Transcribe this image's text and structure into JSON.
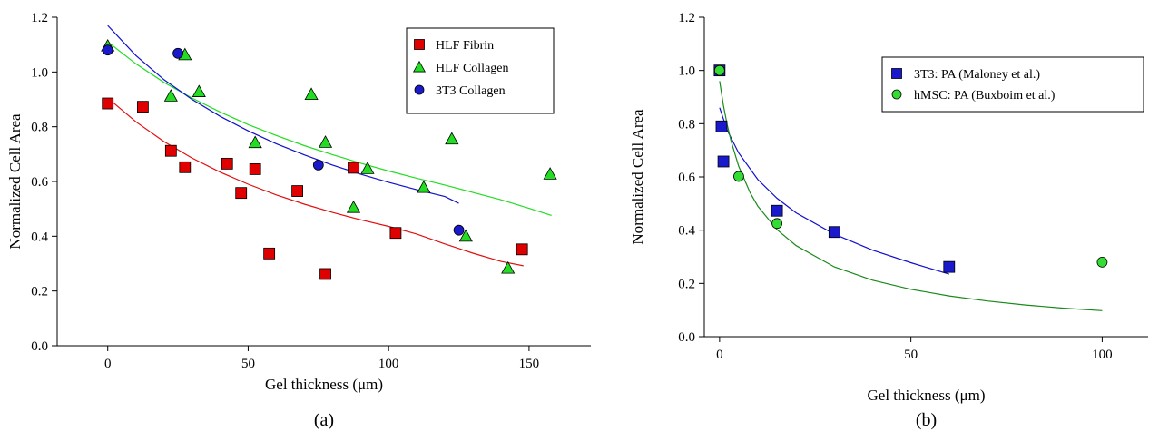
{
  "chart_data": [
    {
      "type": "scatter",
      "panel_label": "(a)",
      "xlabel": "Gel thickness (μm)",
      "ylabel": "Normalized Cell Area",
      "xlim": [
        -18,
        172
      ],
      "ylim": [
        0,
        1.2
      ],
      "xticks": [
        0,
        50,
        100,
        150
      ],
      "yticks": [
        0.0,
        0.2,
        0.4,
        0.6,
        0.8,
        1.0,
        1.2
      ],
      "grid": false,
      "legend_position": "top-right",
      "series": [
        {
          "name": "HLF Fibrin",
          "marker": "square",
          "color": "#e00000",
          "x": [
            0,
            12.5,
            22.5,
            27.5,
            42.5,
            47.5,
            52.5,
            57.5,
            67.5,
            77.5,
            87.5,
            102.5,
            147.5
          ],
          "y": [
            0.885,
            0.873,
            0.712,
            0.652,
            0.665,
            0.558,
            0.645,
            0.337,
            0.565,
            0.262,
            0.65,
            0.412,
            0.352
          ],
          "fit": {
            "x": [
              0,
              10,
              20,
              30,
              40,
              50,
              60,
              70,
              80,
              90,
              100,
              110,
              120,
              130,
              140,
              148
            ],
            "y": [
              0.905,
              0.818,
              0.746,
              0.686,
              0.634,
              0.59,
              0.551,
              0.517,
              0.487,
              0.46,
              0.436,
              0.408,
              0.372,
              0.338,
              0.308,
              0.292
            ]
          }
        },
        {
          "name": "HLF Collagen",
          "marker": "triangle",
          "color": "#22dd22",
          "x": [
            0,
            22.5,
            27.5,
            32.5,
            52.5,
            72.5,
            77.5,
            87.5,
            92.5,
            112.5,
            122.5,
            127.5,
            142.5,
            157.5
          ],
          "y": [
            1.095,
            0.912,
            1.063,
            0.928,
            0.742,
            0.918,
            0.743,
            0.505,
            0.647,
            0.578,
            0.755,
            0.4,
            0.283,
            0.627
          ],
          "fit": {
            "x": [
              0,
              10,
              20,
              30,
              40,
              50,
              60,
              70,
              80,
              90,
              100,
              110,
              120,
              130,
              140,
              150,
              158
            ],
            "y": [
              1.11,
              1.03,
              0.962,
              0.905,
              0.854,
              0.808,
              0.768,
              0.731,
              0.698,
              0.667,
              0.638,
              0.612,
              0.587,
              0.56,
              0.533,
              0.502,
              0.476
            ]
          }
        },
        {
          "name": "3T3 Collagen",
          "marker": "circle",
          "color": "#1a1acc",
          "x": [
            0,
            25,
            75,
            125
          ],
          "y": [
            1.08,
            1.068,
            0.66,
            0.422
          ],
          "fit": {
            "x": [
              0,
              10,
              20,
              30,
              40,
              50,
              60,
              70,
              80,
              90,
              100,
              110,
              120,
              125
            ],
            "y": [
              1.17,
              1.06,
              0.972,
              0.9,
              0.838,
              0.785,
              0.738,
              0.697,
              0.66,
              0.627,
              0.597,
              0.57,
              0.545,
              0.52
            ]
          }
        }
      ]
    },
    {
      "type": "scatter",
      "panel_label": "(b)",
      "xlabel": "Gel thickness (μm)",
      "ylabel": "Normalized Cell Area",
      "xlim": [
        -4,
        112
      ],
      "ylim": [
        0,
        1.2
      ],
      "xticks": [
        0,
        50,
        100
      ],
      "yticks": [
        0.0,
        0.2,
        0.4,
        0.6,
        0.8,
        1.0,
        1.2
      ],
      "grid": false,
      "legend_position": "top-right",
      "series": [
        {
          "name": "3T3: PA (Maloney et al.)",
          "marker": "square",
          "color": "#1a1acc",
          "x": [
            0,
            0.5,
            1,
            15,
            30,
            60
          ],
          "y": [
            1.0,
            0.79,
            0.658,
            0.473,
            0.393,
            0.262
          ],
          "fit": {
            "x": [
              0,
              2,
              5,
              10,
              15,
              20,
              30,
              40,
              50,
              60
            ],
            "y": [
              0.86,
              0.775,
              0.69,
              0.59,
              0.52,
              0.465,
              0.385,
              0.325,
              0.278,
              0.235
            ]
          }
        },
        {
          "name": "hMSC: PA (Buxboim et al.)",
          "marker": "circle",
          "color": "#33dd33",
          "x": [
            0,
            5,
            15,
            100
          ],
          "y": [
            1.0,
            0.602,
            0.425,
            0.28
          ],
          "fit": {
            "x": [
              0,
              1,
              2,
              3,
              5,
              8,
              10,
              15,
              20,
              30,
              40,
              50,
              60,
              70,
              80,
              90,
              100
            ],
            "y": [
              0.96,
              0.868,
              0.795,
              0.735,
              0.64,
              0.54,
              0.49,
              0.402,
              0.342,
              0.262,
              0.212,
              0.178,
              0.153,
              0.134,
              0.119,
              0.107,
              0.098
            ]
          }
        }
      ]
    }
  ],
  "colors": {
    "fit_red": "#e01010",
    "fit_green_a": "#22dd22",
    "fit_blue": "#1010cc",
    "fit_green_b": "#1a8a1a"
  }
}
